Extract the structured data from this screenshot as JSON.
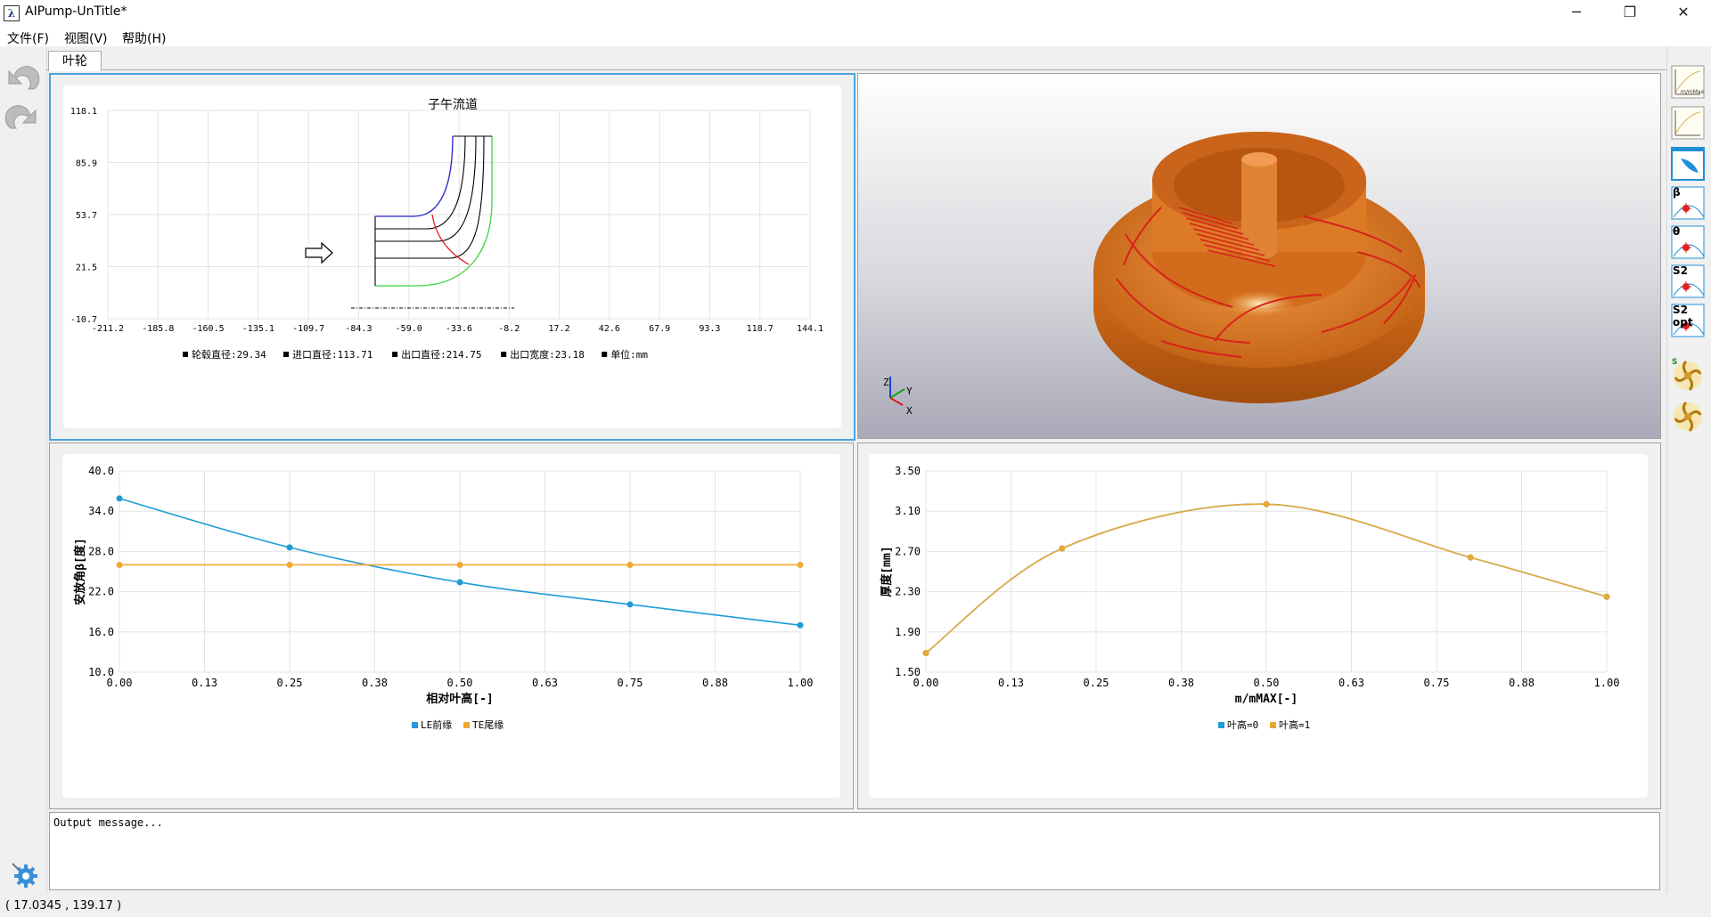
{
  "window": {
    "title": "AIPump-UnTitle*",
    "minimize": "─",
    "maximize": "❐",
    "close": "✕"
  },
  "menu": [
    {
      "label": "文件(F)"
    },
    {
      "label": "视图(V)"
    },
    {
      "label": "帮助(H)"
    }
  ],
  "tab": {
    "label": "叶轮"
  },
  "left_toolbar": {
    "undo_icon": "undo-arrow-icon",
    "redo_icon": "redo-arrow-icon",
    "settings_icon": "gear-icon"
  },
  "right_toolbar": [
    {
      "icon": "chart-thumbnail-icon",
      "caption": "m/mMax"
    },
    {
      "icon": "chart-thumbnail-icon-2",
      "caption": ""
    },
    {
      "icon": "blade-shape-icon",
      "caption": ""
    },
    {
      "icon": "beta-icon",
      "caption": "β"
    },
    {
      "icon": "theta-icon",
      "caption": "θ"
    },
    {
      "icon": "s2-icon",
      "caption": "S2"
    },
    {
      "icon": "s2-opt-icon",
      "caption": "S2 opt"
    },
    {
      "icon": "impeller-icon",
      "caption": "S"
    },
    {
      "icon": "impeller-icon-2",
      "caption": ""
    }
  ],
  "meridional": {
    "title": "子午流道",
    "y_ticks": [
      "118.1",
      "85.9",
      "53.7",
      "21.5",
      "-10.7"
    ],
    "x_ticks": [
      "-211.2",
      "-185.8",
      "-160.5",
      "-135.1",
      "-109.7",
      "-84.3",
      "-59.0",
      "-33.6",
      "-8.2",
      "17.2",
      "42.6",
      "67.9",
      "93.3",
      "118.7",
      "144.1"
    ],
    "legend": [
      {
        "label": "轮毂直径:29.34"
      },
      {
        "label": "进口直径:113.71"
      },
      {
        "label": "出口直径:214.75"
      },
      {
        "label": "出口宽度:23.18"
      },
      {
        "label": "单位:mm"
      }
    ]
  },
  "viewer3d": {
    "axis_labels": {
      "z": "Z",
      "y": "Y",
      "x": "X"
    },
    "body_color": "#e07a22",
    "blade_color": "#d8231a"
  },
  "chart_data": [
    {
      "type": "line",
      "ylabel": "安放角β[度]",
      "xlabel": "相对叶高[-]",
      "ylim": [
        10.0,
        40.0
      ],
      "xlim": [
        0.0,
        1.0
      ],
      "y_ticks": [
        "40.0",
        "34.0",
        "28.0",
        "22.0",
        "16.0",
        "10.0"
      ],
      "x_ticks": [
        "0.00",
        "0.13",
        "0.25",
        "0.38",
        "0.50",
        "0.63",
        "0.75",
        "0.88",
        "1.00"
      ],
      "series": [
        {
          "name": "LE前缘",
          "color": "#1f9bd7",
          "x": [
            0.0,
            0.25,
            0.5,
            0.75,
            1.0
          ],
          "y": [
            35.9,
            28.6,
            23.4,
            20.1,
            17.0
          ]
        },
        {
          "name": "TE尾缘",
          "color": "#f0a830",
          "x": [
            0.0,
            0.25,
            0.5,
            0.75,
            1.0
          ],
          "y": [
            26.0,
            26.0,
            26.0,
            26.0,
            26.0
          ]
        }
      ]
    },
    {
      "type": "line",
      "ylabel": "厚度[mm]",
      "xlabel": "m/mMAX[-]",
      "ylim": [
        1.5,
        3.5
      ],
      "xlim": [
        0.0,
        1.0
      ],
      "y_ticks": [
        "3.50",
        "3.10",
        "2.70",
        "2.30",
        "1.90",
        "1.50"
      ],
      "x_ticks": [
        "0.00",
        "0.13",
        "0.25",
        "0.38",
        "0.50",
        "0.63",
        "0.75",
        "0.88",
        "1.00"
      ],
      "series": [
        {
          "name": "叶高=0",
          "color": "#1f9bd7",
          "x": [
            0.0,
            0.2,
            0.5,
            0.8,
            1.0
          ],
          "y": [
            1.69,
            2.73,
            3.17,
            2.64,
            2.25
          ]
        },
        {
          "name": "叶高=1",
          "color": "#e8a838",
          "x": [
            0.0,
            0.2,
            0.5,
            0.8,
            1.0
          ],
          "y": [
            1.69,
            2.73,
            3.17,
            2.64,
            2.25
          ]
        }
      ]
    }
  ],
  "output": {
    "text": "Output message..."
  },
  "status": {
    "coords": "( 17.0345 , 139.17 )"
  }
}
